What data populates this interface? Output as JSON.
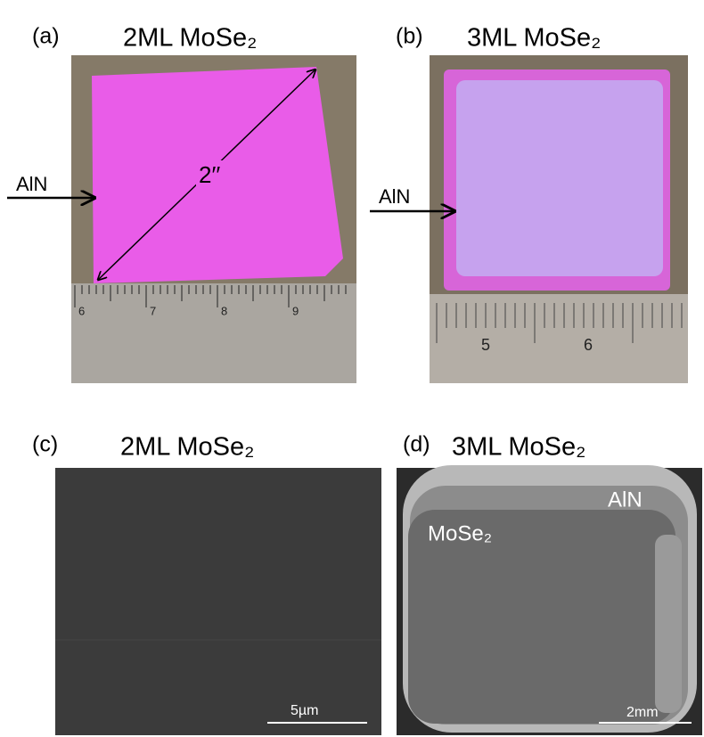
{
  "panels": [
    {
      "label": "(a)",
      "title": "2ML MoSe₂",
      "arrow_label": "AlN",
      "diagonal_label": "2′′",
      "ruler": [
        "6",
        "7",
        "8",
        "9"
      ]
    },
    {
      "label": "(b)",
      "title": "3ML MoSe₂",
      "arrow_label": "AlN",
      "ruler": [
        "5",
        "6"
      ]
    },
    {
      "label": "(c)",
      "title": "2ML MoSe₂",
      "scale_bar": "5µm"
    },
    {
      "label": "(d)",
      "title": "3ML MoSe₂",
      "region_labels": [
        "AlN",
        "MoSe₂"
      ],
      "scale_bar": "2mm"
    }
  ]
}
